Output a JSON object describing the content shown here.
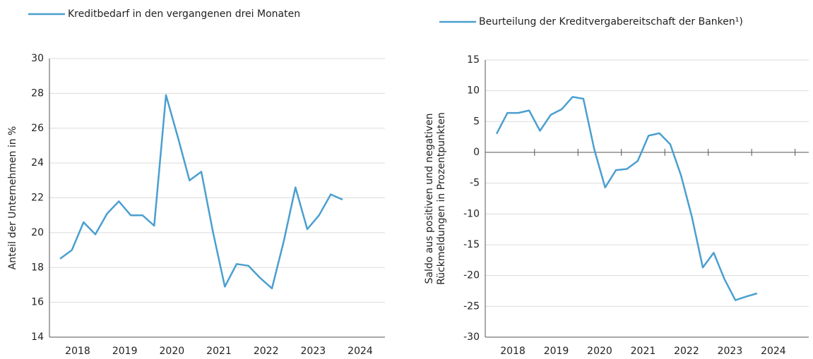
{
  "chart_data": [
    {
      "type": "line",
      "legend": "top-left",
      "ylabel": "Anteil der Unternehmen in %",
      "x": [
        2018,
        2018.25,
        2018.5,
        2018.75,
        2019,
        2019.25,
        2019.5,
        2019.75,
        2020,
        2020.25,
        2020.5,
        2020.75,
        2021,
        2021.25,
        2021.5,
        2021.75,
        2022,
        2022.25,
        2022.5,
        2022.75,
        2023,
        2023.25,
        2023.5,
        2023.75,
        2024
      ],
      "series": [
        {
          "name": "Kreditbedarf in den vergangenen drei Monaten",
          "color": "#4a9fd0",
          "values": [
            18.5,
            19.0,
            20.6,
            19.9,
            21.1,
            21.8,
            21.0,
            21.0,
            20.4,
            27.9,
            25.5,
            23.0,
            23.5,
            20.0,
            16.9,
            18.2,
            18.1,
            17.4,
            16.8,
            19.5,
            22.6,
            20.2,
            21.0,
            22.2,
            21.9
          ]
        }
      ],
      "xlim": [
        2017.775,
        2024.9
      ],
      "xticks": [
        {
          "value": 2018.375,
          "label": "2018"
        },
        {
          "value": 2019.375,
          "label": "2019"
        },
        {
          "value": 2020.375,
          "label": "2020"
        },
        {
          "value": 2021.375,
          "label": "2021"
        },
        {
          "value": 2022.375,
          "label": "2022"
        },
        {
          "value": 2023.375,
          "label": "2023"
        },
        {
          "value": 2024.375,
          "label": "2024"
        }
      ],
      "ylim": [
        14,
        30
      ],
      "yticks": [
        14,
        16,
        18,
        20,
        22,
        24,
        26,
        28,
        30
      ],
      "grid": true
    },
    {
      "type": "line",
      "legend": "top-right",
      "ylabel": [
        "Saldo aus positiven und negativen",
        "Rückmeldungen in Prozentpunkten"
      ],
      "x": [
        2018,
        2018.25,
        2018.5,
        2018.75,
        2019,
        2019.25,
        2019.5,
        2019.75,
        2020,
        2020.25,
        2020.5,
        2020.75,
        2021,
        2021.25,
        2021.5,
        2021.75,
        2022,
        2022.25,
        2022.5,
        2022.75,
        2023,
        2023.25,
        2023.5,
        2023.75,
        2024
      ],
      "series": [
        {
          "name": "Beurteilung der Kreditvergabereitschaft der Banken¹)",
          "color": "#4a9fd0",
          "values": [
            3.0,
            6.4,
            6.4,
            6.8,
            3.5,
            6.1,
            7.0,
            9.0,
            8.7,
            0.5,
            -5.7,
            -2.9,
            -2.7,
            -1.4,
            2.7,
            3.1,
            1.3,
            -3.8,
            -10.5,
            -18.7,
            -16.3,
            -20.6,
            -24.0,
            -23.4,
            -22.9
          ]
        }
      ],
      "xlim": [
        2017.74,
        2025.19
      ],
      "xticks": [
        {
          "value": 2018.375,
          "label": "2018"
        },
        {
          "value": 2019.375,
          "label": "2019"
        },
        {
          "value": 2020.375,
          "label": "2020"
        },
        {
          "value": 2021.375,
          "label": "2021"
        },
        {
          "value": 2022.375,
          "label": "2022"
        },
        {
          "value": 2023.375,
          "label": "2023"
        },
        {
          "value": 2024.375,
          "label": "2024"
        }
      ],
      "ylim": [
        -30,
        15
      ],
      "yticks": [
        -30,
        -25,
        -20,
        -15,
        -10,
        -5,
        0,
        5,
        10,
        15
      ],
      "grid": true
    }
  ]
}
